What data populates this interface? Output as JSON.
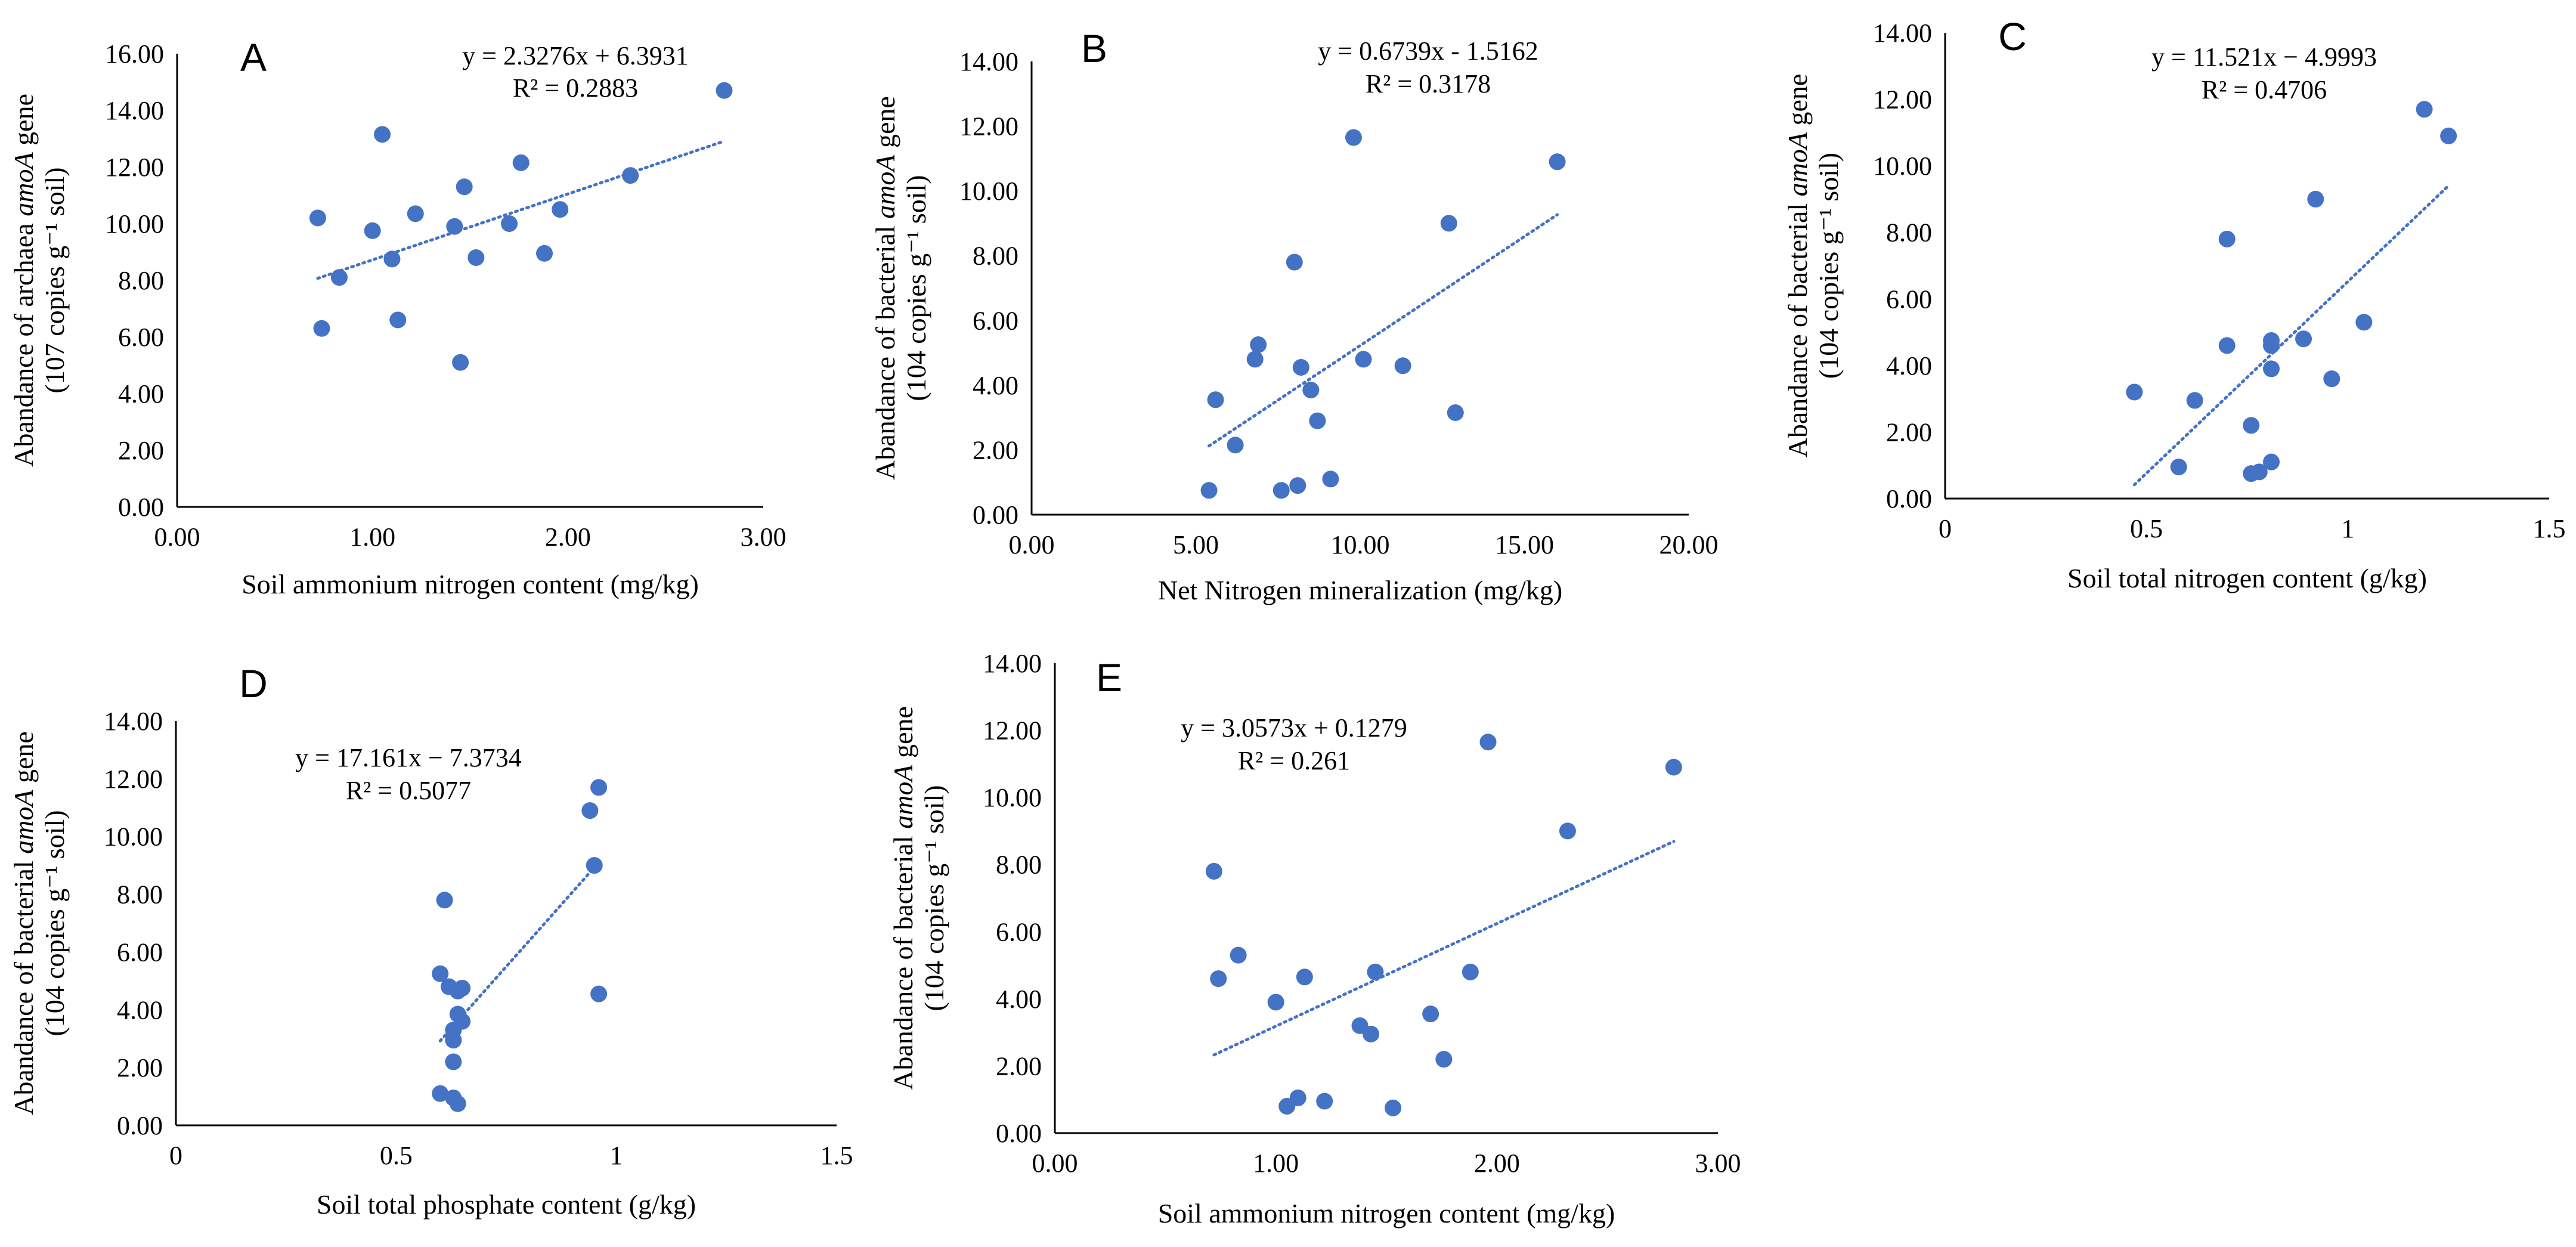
{
  "colors": {
    "point": "#4472C4",
    "trend": "#4472C4",
    "axis": "#000000"
  },
  "chart_data": [
    {
      "type": "scatter",
      "panel": "A",
      "equation": "y = 2.3276x + 6.3931",
      "r2": "R² = 0.2883",
      "xlabel": "Soil ammonium nitrogen content (mg/kg)",
      "ylabel_line1": [
        "Abandance of archaea ",
        "amoA",
        " gene"
      ],
      "ylabel_line2": "(107 copies g⁻¹ soil)",
      "xlim": [
        0,
        3
      ],
      "ylim": [
        0,
        16
      ],
      "xticks": [
        0,
        1,
        2,
        3
      ],
      "yticks": [
        0,
        2,
        4,
        6,
        8,
        10,
        12,
        14,
        16
      ],
      "xtick_labels": [
        "0.00",
        "1.00",
        "2.00",
        "3.00"
      ],
      "ytick_labels": [
        "0.00",
        "2.00",
        "4.00",
        "6.00",
        "8.00",
        "10.00",
        "12.00",
        "14.00",
        "16.00"
      ],
      "trend": {
        "slope": 2.3276,
        "intercept": 6.3931,
        "x_range": [
          0.72,
          2.8
        ]
      },
      "points": [
        [
          0.72,
          10.2
        ],
        [
          0.74,
          6.3
        ],
        [
          0.83,
          8.1
        ],
        [
          1.0,
          9.75
        ],
        [
          1.05,
          13.15
        ],
        [
          1.1,
          8.75
        ],
        [
          1.13,
          6.6
        ],
        [
          1.22,
          10.35
        ],
        [
          1.42,
          9.9
        ],
        [
          1.45,
          5.1
        ],
        [
          1.47,
          11.3
        ],
        [
          1.53,
          8.8
        ],
        [
          1.7,
          10.0
        ],
        [
          1.76,
          12.15
        ],
        [
          1.88,
          8.95
        ],
        [
          1.96,
          10.5
        ],
        [
          2.32,
          11.7
        ],
        [
          2.8,
          14.7
        ]
      ]
    },
    {
      "type": "scatter",
      "panel": "B",
      "equation": "y = 0.6739x - 1.5162",
      "r2": "R² = 0.3178",
      "xlabel": "Net Nitrogen mineralization (mg/kg)",
      "ylabel_line1": [
        "Abandance of bacterial ",
        "amoA",
        " gene"
      ],
      "ylabel_line2": "(104 copies g⁻¹ soil)",
      "xlim": [
        0,
        20
      ],
      "ylim": [
        0,
        14
      ],
      "xticks": [
        0,
        5,
        10,
        15,
        20
      ],
      "yticks": [
        0,
        2,
        4,
        6,
        8,
        10,
        12,
        14
      ],
      "xtick_labels": [
        "0.00",
        "5.00",
        "10.00",
        "15.00",
        "20.00"
      ],
      "ytick_labels": [
        "0.00",
        "2.00",
        "4.00",
        "6.00",
        "8.00",
        "10.00",
        "12.00",
        "14.00"
      ],
      "trend": {
        "slope": 0.6739,
        "intercept": -1.5162,
        "x_range": [
          5.4,
          16.0
        ]
      },
      "points": [
        [
          5.4,
          0.75
        ],
        [
          5.6,
          3.55
        ],
        [
          6.2,
          2.15
        ],
        [
          6.8,
          4.8
        ],
        [
          6.9,
          5.25
        ],
        [
          7.6,
          0.75
        ],
        [
          8.0,
          7.8
        ],
        [
          8.1,
          0.9
        ],
        [
          8.2,
          4.55
        ],
        [
          8.5,
          3.85
        ],
        [
          8.7,
          2.9
        ],
        [
          9.1,
          1.1
        ],
        [
          9.8,
          11.65
        ],
        [
          10.1,
          4.8
        ],
        [
          11.3,
          4.6
        ],
        [
          12.7,
          9.0
        ],
        [
          12.9,
          3.15
        ],
        [
          16.0,
          10.9
        ]
      ]
    },
    {
      "type": "scatter",
      "panel": "C",
      "equation": "y = 11.521x − 4.9993",
      "r2": "R² = 0.4706",
      "xlabel": "Soil total nitrogen content (g/kg)",
      "ylabel_line1": [
        "Abandance of bacterial ",
        "amoA",
        " gene"
      ],
      "ylabel_line2": "(104 copies g⁻¹ soil)",
      "xlim": [
        0,
        1.5
      ],
      "ylim": [
        0,
        14
      ],
      "xticks": [
        0,
        0.5,
        1,
        1.5
      ],
      "yticks": [
        0,
        2,
        4,
        6,
        8,
        10,
        12,
        14
      ],
      "xtick_labels": [
        "0",
        "0.5",
        "1",
        "1.5"
      ],
      "ytick_labels": [
        "0.00",
        "2.00",
        "4.00",
        "6.00",
        "8.00",
        "10.00",
        "12.00",
        "14.00"
      ],
      "trend": {
        "slope": 11.521,
        "intercept": -4.9993,
        "x_range": [
          0.47,
          1.25
        ]
      },
      "points": [
        [
          0.47,
          3.2
        ],
        [
          0.58,
          0.95
        ],
        [
          0.62,
          2.95
        ],
        [
          0.7,
          4.6
        ],
        [
          0.7,
          7.8
        ],
        [
          0.76,
          0.75
        ],
        [
          0.76,
          2.2
        ],
        [
          0.78,
          0.8
        ],
        [
          0.81,
          1.1
        ],
        [
          0.81,
          3.9
        ],
        [
          0.81,
          4.6
        ],
        [
          0.81,
          4.75
        ],
        [
          0.89,
          4.8
        ],
        [
          0.92,
          9.0
        ],
        [
          0.96,
          3.6
        ],
        [
          1.04,
          5.3
        ],
        [
          1.19,
          11.7
        ],
        [
          1.25,
          10.9
        ]
      ]
    },
    {
      "type": "scatter",
      "panel": "D",
      "equation": "y = 17.161x − 7.3734",
      "r2": "R² = 0.5077",
      "xlabel": "Soil total phosphate content (g/kg)",
      "ylabel_line1": [
        "Abandance of bacterial ",
        "amoA",
        " gene"
      ],
      "ylabel_line2": "(104 copies g⁻¹ soil)",
      "xlim": [
        0,
        1.5
      ],
      "ylim": [
        0,
        14
      ],
      "xticks": [
        0,
        0.5,
        1,
        1.5
      ],
      "yticks": [
        0,
        2,
        4,
        6,
        8,
        10,
        12,
        14
      ],
      "xtick_labels": [
        "0",
        "0.5",
        "1",
        "1.5"
      ],
      "ytick_labels": [
        "0.00",
        "2.00",
        "4.00",
        "6.00",
        "8.00",
        "10.00",
        "12.00",
        "14.00"
      ],
      "trend": {
        "slope": 17.161,
        "intercept": -7.3734,
        "x_range": [
          0.6,
          0.95
        ]
      },
      "points": [
        [
          0.6,
          1.1
        ],
        [
          0.6,
          5.25
        ],
        [
          0.61,
          7.8
        ],
        [
          0.62,
          4.8
        ],
        [
          0.63,
          0.95
        ],
        [
          0.63,
          2.2
        ],
        [
          0.63,
          2.95
        ],
        [
          0.63,
          3.3
        ],
        [
          0.64,
          0.75
        ],
        [
          0.64,
          3.85
        ],
        [
          0.64,
          4.65
        ],
        [
          0.65,
          3.6
        ],
        [
          0.65,
          4.75
        ],
        [
          0.94,
          10.9
        ],
        [
          0.95,
          9.0
        ],
        [
          0.96,
          11.7
        ],
        [
          0.96,
          4.55
        ]
      ]
    },
    {
      "type": "scatter",
      "panel": "E",
      "equation": "y = 3.0573x + 0.1279",
      "r2": "R² = 0.261",
      "xlabel": "Soil ammonium nitrogen content (mg/kg)",
      "ylabel_line1": [
        "Abandance of bacterial ",
        "amoA",
        " gene"
      ],
      "ylabel_line2": "(104 copies g⁻¹ soil)",
      "xlim": [
        0,
        3
      ],
      "ylim": [
        0,
        14
      ],
      "xticks": [
        0,
        1,
        2,
        3
      ],
      "yticks": [
        0,
        2,
        4,
        6,
        8,
        10,
        12,
        14
      ],
      "xtick_labels": [
        "0.00",
        "1.00",
        "2.00",
        "3.00"
      ],
      "ytick_labels": [
        "0.00",
        "2.00",
        "4.00",
        "6.00",
        "8.00",
        "10.00",
        "12.00",
        "14.00"
      ],
      "trend": {
        "slope": 3.0573,
        "intercept": 0.1279,
        "x_range": [
          0.72,
          2.8
        ]
      },
      "points": [
        [
          0.72,
          7.8
        ],
        [
          0.74,
          4.6
        ],
        [
          0.83,
          5.3
        ],
        [
          1.0,
          3.9
        ],
        [
          1.05,
          0.8
        ],
        [
          1.1,
          1.05
        ],
        [
          1.13,
          4.65
        ],
        [
          1.22,
          0.95
        ],
        [
          1.38,
          3.2
        ],
        [
          1.43,
          2.95
        ],
        [
          1.45,
          4.8
        ],
        [
          1.53,
          0.75
        ],
        [
          1.7,
          3.55
        ],
        [
          1.76,
          2.2
        ],
        [
          1.88,
          4.8
        ],
        [
          1.96,
          11.65
        ],
        [
          2.32,
          9.0
        ],
        [
          2.8,
          10.9
        ]
      ]
    }
  ]
}
